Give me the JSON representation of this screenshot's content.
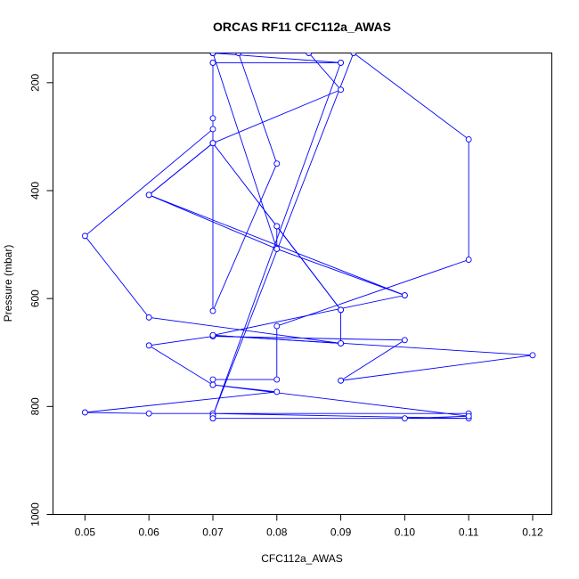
{
  "chart_data": {
    "type": "line",
    "title": "ORCAS RF11 CFC112a_AWAS",
    "xlabel": "CFC112a_AWAS",
    "ylabel": "Pressure (mbar)",
    "xlim": [
      0.045,
      0.123
    ],
    "ylim": [
      1000,
      145
    ],
    "y_inverted": true,
    "grid": false,
    "line_color": "#0000ff",
    "marker": "open-circle",
    "x_ticks": [
      0.05,
      0.06,
      0.07,
      0.08,
      0.09,
      0.1,
      0.11,
      0.12
    ],
    "x_tick_labels": [
      "0.05",
      "0.06",
      "0.07",
      "0.08",
      "0.09",
      "0.10",
      "0.11",
      "0.12"
    ],
    "y_ticks": [
      200,
      400,
      600,
      800,
      1000
    ],
    "y_tick_labels": [
      "200",
      "400",
      "600",
      "800",
      "1000"
    ],
    "series": [
      {
        "points": [
          [
            0.07,
            822
          ],
          [
            0.11,
            822
          ],
          [
            0.07,
            813
          ],
          [
            0.11,
            813
          ],
          [
            0.06,
            813
          ],
          [
            0.05,
            811
          ],
          [
            0.08,
            773
          ],
          [
            0.07,
            760
          ],
          [
            0.07,
            750
          ],
          [
            0.08,
            750
          ],
          [
            0.08,
            651
          ],
          [
            0.11,
            528
          ],
          [
            0.11,
            305
          ],
          [
            0.092,
            145
          ],
          [
            0.07,
            817
          ],
          [
            0.09,
            163
          ],
          [
            0.07,
            163
          ],
          [
            0.07,
            266
          ],
          [
            0.07,
            623
          ],
          [
            0.08,
            350
          ],
          [
            0.074,
            145
          ],
          [
            0.07,
            145
          ],
          [
            0.09,
            163
          ],
          [
            0.07,
            163
          ],
          [
            0.07,
            286
          ],
          [
            0.05,
            484
          ],
          [
            0.06,
            635
          ],
          [
            0.09,
            683
          ],
          [
            0.07,
            668
          ],
          [
            0.12,
            705
          ],
          [
            0.09,
            752
          ],
          [
            0.1,
            677
          ],
          [
            0.07,
            670
          ],
          [
            0.06,
            687
          ],
          [
            0.07,
            760
          ],
          [
            0.11,
            818
          ],
          [
            0.1,
            822
          ],
          [
            0.07,
            822
          ]
        ]
      },
      {
        "points": [
          [
            0.07,
            145
          ],
          [
            0.07,
            145
          ],
          [
            0.07,
            145
          ],
          [
            0.085,
            145
          ],
          [
            0.09,
            213
          ],
          [
            0.07,
            312
          ],
          [
            0.06,
            408
          ],
          [
            0.1,
            594
          ],
          [
            0.07,
            668
          ],
          [
            0.09,
            683
          ],
          [
            0.09,
            621
          ],
          [
            0.08,
            466
          ],
          [
            0.08,
            508
          ],
          [
            0.07,
            145
          ]
        ]
      },
      {
        "points": [
          [
            0.07,
            312
          ],
          [
            0.09,
            621
          ],
          [
            0.08,
            466
          ],
          [
            0.07,
            312
          ],
          [
            0.06,
            408
          ],
          [
            0.08,
            508
          ],
          [
            0.1,
            594
          ]
        ]
      }
    ]
  }
}
